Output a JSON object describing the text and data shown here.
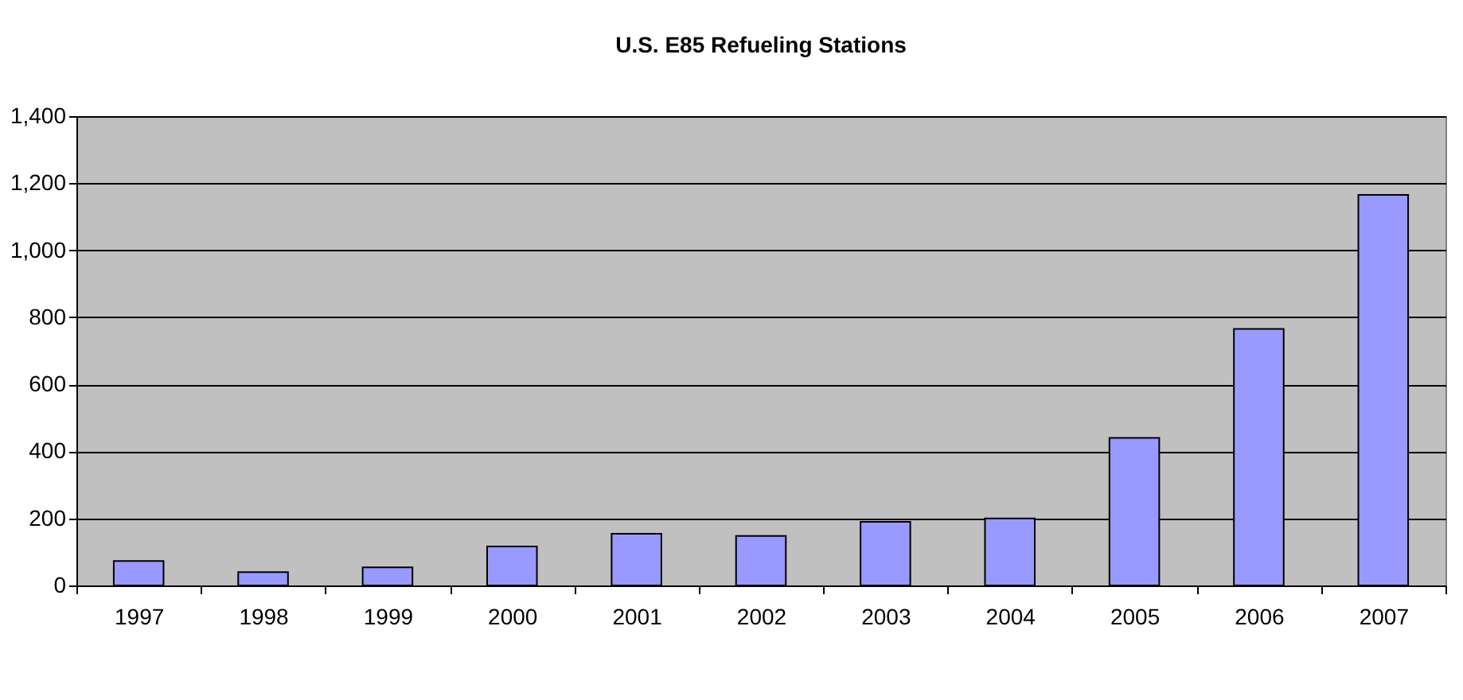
{
  "chart_data": {
    "type": "bar",
    "title": "U.S. E85 Refueling Stations",
    "categories": [
      "1997",
      "1998",
      "1999",
      "2000",
      "2001",
      "2002",
      "2003",
      "2004",
      "2005",
      "2006",
      "2007"
    ],
    "values": [
      73,
      40,
      54,
      116,
      154,
      148,
      190,
      200,
      440,
      765,
      1165
    ],
    "color": "#9999ff",
    "ylim": [
      0,
      1400
    ],
    "yticks": [
      0,
      200,
      400,
      600,
      800,
      {
        "value": 1000,
        "label": "1,000"
      },
      {
        "value": 1200,
        "label": "1,200"
      },
      {
        "value": 1400,
        "label": "1,400"
      }
    ],
    "grid": "y"
  }
}
